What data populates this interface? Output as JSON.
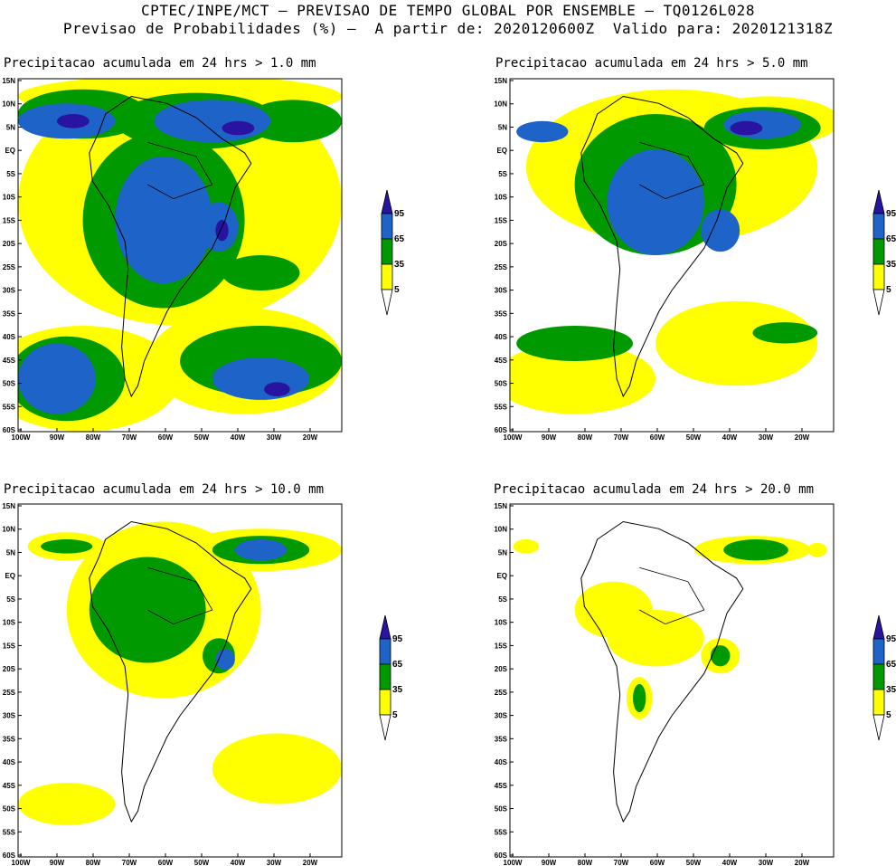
{
  "header": {
    "line1": "CPTEC/INPE/MCT – PREVISAO DE TEMPO GLOBAL POR ENSEMBLE – TQ0126L028",
    "line2": "Previsao de Probabilidades (%) –  A partir de: 2020120600Z  Valido para: 2020121318Z"
  },
  "panels": [
    {
      "title": "Precipitacao acumulada em 24 hrs > 1.0 mm"
    },
    {
      "title": "Precipitacao acumulada em 24 hrs > 5.0 mm"
    },
    {
      "title": "Precipitacao acumulada em 24 hrs > 10.0 mm"
    },
    {
      "title": "Precipitacao acumulada em 24 hrs > 20.0 mm"
    }
  ],
  "axes": {
    "lat_labels": [
      "15N",
      "10N",
      "5N",
      "EQ",
      "5S",
      "10S",
      "15S",
      "20S",
      "25S",
      "30S",
      "35S",
      "40S",
      "45S",
      "50S",
      "55S",
      "60S"
    ],
    "lon_labels": [
      "100W",
      "90W",
      "80W",
      "70W",
      "60W",
      "50W",
      "40W",
      "30W",
      "20W"
    ]
  },
  "colorbar": {
    "levels": [
      "95",
      "65",
      "35",
      "5"
    ],
    "colors": {
      "c5": "#ffff00",
      "c35": "#009900",
      "c65": "#1e64c8",
      "c95": "#2814a0"
    }
  }
}
